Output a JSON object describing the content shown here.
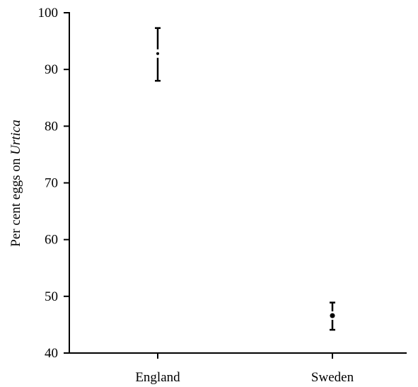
{
  "chart_data": {
    "type": "scatter",
    "title": "",
    "xlabel": "",
    "ylabel_parts": [
      {
        "text": "Per cent eggs on ",
        "italic": false
      },
      {
        "text": "Urtica",
        "italic": true
      }
    ],
    "ylim": [
      40,
      100
    ],
    "yticks": [
      40,
      50,
      60,
      70,
      80,
      90,
      100
    ],
    "categories": [
      "England",
      "Sweden"
    ],
    "points": [
      {
        "category": "England",
        "y": 92.8,
        "err_low": 88.0,
        "err_high": 97.3
      },
      {
        "category": "Sweden",
        "y": 46.6,
        "err_low": 44.1,
        "err_high": 48.9
      }
    ],
    "grid": false,
    "legend": "none"
  }
}
